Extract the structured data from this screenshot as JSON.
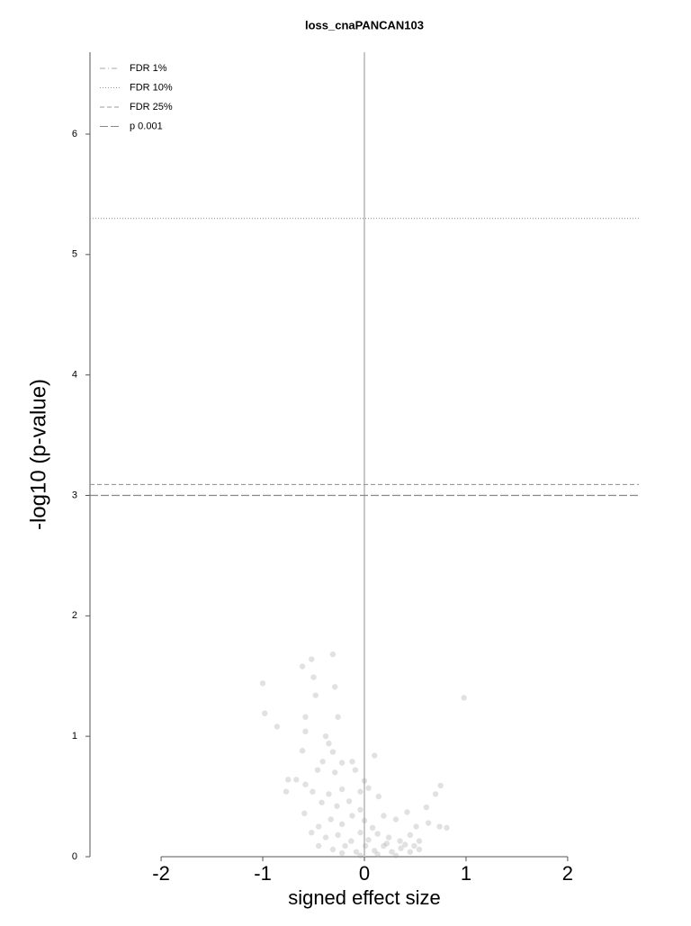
{
  "chart_data": {
    "type": "scatter",
    "title": "loss_cnaPANCAN103",
    "x_label": "signed effect size",
    "y_label": "-log10 (p-value)",
    "x": [
      -1.0,
      -0.98,
      -0.86,
      -0.61,
      -0.52,
      -0.5,
      -0.48,
      -0.31,
      -0.29,
      -0.26,
      -0.58,
      0.98,
      -0.58,
      -0.38,
      -0.35,
      -0.31,
      0.1,
      -0.61,
      -0.77,
      -0.67,
      -0.46,
      -0.41,
      -0.22,
      -0.12,
      -0.58,
      -0.51,
      -0.35,
      -0.22,
      -0.04,
      0.04,
      0.75,
      0.7,
      0.61,
      0.81,
      0.14,
      -0.42,
      -0.27,
      -0.15,
      -0.04,
      -0.59,
      -0.45,
      -0.33,
      -0.22,
      -0.12,
      0.0,
      0.08,
      0.19,
      0.31,
      0.42,
      0.51,
      0.63,
      0.74,
      -0.52,
      -0.38,
      -0.26,
      -0.13,
      -0.04,
      0.04,
      0.13,
      0.24,
      0.35,
      0.45,
      0.54,
      -0.45,
      -0.31,
      -0.19,
      -0.08,
      0.01,
      0.1,
      0.19,
      0.27,
      0.36,
      0.45,
      0.54,
      -0.22,
      -0.04,
      0.13,
      0.31,
      0.22,
      0.4,
      0.49,
      -0.75,
      -0.29,
      -0.09,
      0.0
    ],
    "values": [
      1.44,
      1.19,
      1.08,
      1.58,
      1.64,
      1.49,
      1.34,
      1.68,
      1.41,
      1.16,
      1.16,
      1.32,
      1.04,
      1.0,
      0.94,
      0.87,
      0.84,
      0.88,
      0.54,
      0.64,
      0.72,
      0.79,
      0.78,
      0.79,
      0.6,
      0.54,
      0.52,
      0.56,
      0.54,
      0.57,
      0.59,
      0.52,
      0.41,
      0.24,
      0.5,
      0.45,
      0.42,
      0.46,
      0.39,
      0.36,
      0.25,
      0.31,
      0.27,
      0.34,
      0.3,
      0.24,
      0.34,
      0.31,
      0.37,
      0.25,
      0.28,
      0.25,
      0.2,
      0.16,
      0.18,
      0.13,
      0.2,
      0.14,
      0.19,
      0.16,
      0.13,
      0.18,
      0.13,
      0.09,
      0.06,
      0.09,
      0.04,
      0.09,
      0.05,
      0.09,
      0.04,
      0.07,
      0.04,
      0.06,
      0.03,
      0.01,
      0.02,
      0.01,
      0.11,
      0.1,
      0.09,
      0.64,
      0.7,
      0.72,
      0.63
    ],
    "color": "#9a9a9a",
    "xlim": [
      -2.7,
      2.7
    ],
    "xticks": [
      -2,
      -1,
      0,
      1,
      2
    ],
    "ylim": [
      0,
      6.68
    ],
    "yticks": [
      0,
      1,
      2,
      3,
      4,
      5,
      6
    ],
    "vline": 0,
    "lines": [
      {
        "name": "FDR 1%",
        "value": null,
        "dash": "6,3,1,3",
        "color": "#aaaaaa"
      },
      {
        "name": "FDR 10%",
        "value": 5.3,
        "dash": "1,2",
        "color": "#999999"
      },
      {
        "name": "FDR 25%",
        "value": 3.09,
        "dash": "5,3",
        "color": "#999999"
      },
      {
        "name": "p 0.001",
        "value": 3.0,
        "dash": "9,3",
        "color": "#888888"
      }
    ],
    "legend": "upper left"
  }
}
